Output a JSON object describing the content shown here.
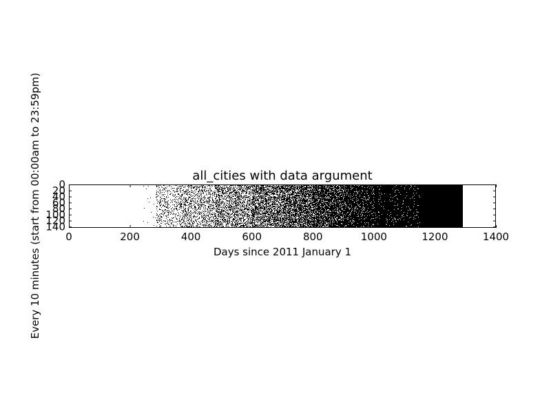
{
  "chart_data": {
    "type": "heatmap",
    "title": "all_cities with data argument",
    "xlabel": "Days since 2011 January 1",
    "ylabel": "Every 10 minutes (start from 00:00am to 23:59pm)",
    "xlim": [
      0,
      1400
    ],
    "ylim": [
      144,
      0
    ],
    "x_ticks": [
      0,
      200,
      400,
      600,
      800,
      1000,
      1200,
      1400
    ],
    "y_ticks": [
      0,
      20,
      40,
      60,
      80,
      100,
      120,
      140
    ],
    "grid": false,
    "colors": {
      "mark": "#000000",
      "background": "#ffffff"
    },
    "density_profile": [
      {
        "day_range": [
          0,
          240
        ],
        "density": 0.0
      },
      {
        "day_range": [
          240,
          285
        ],
        "density": 0.01
      },
      {
        "day_range": [
          285,
          360
        ],
        "density": 0.18
      },
      {
        "day_range": [
          360,
          480
        ],
        "density": 0.28
      },
      {
        "day_range": [
          480,
          600
        ],
        "density": 0.42
      },
      {
        "day_range": [
          600,
          700
        ],
        "density": 0.55
      },
      {
        "day_range": [
          700,
          800
        ],
        "density": 0.68
      },
      {
        "day_range": [
          800,
          900
        ],
        "density": 0.8
      },
      {
        "day_range": [
          900,
          1000
        ],
        "density": 0.9
      },
      {
        "day_range": [
          1000,
          1150
        ],
        "density": 0.96
      },
      {
        "day_range": [
          1150,
          1290
        ],
        "density": 1.0
      },
      {
        "day_range": [
          1290,
          1400
        ],
        "density": 0.0
      }
    ]
  }
}
